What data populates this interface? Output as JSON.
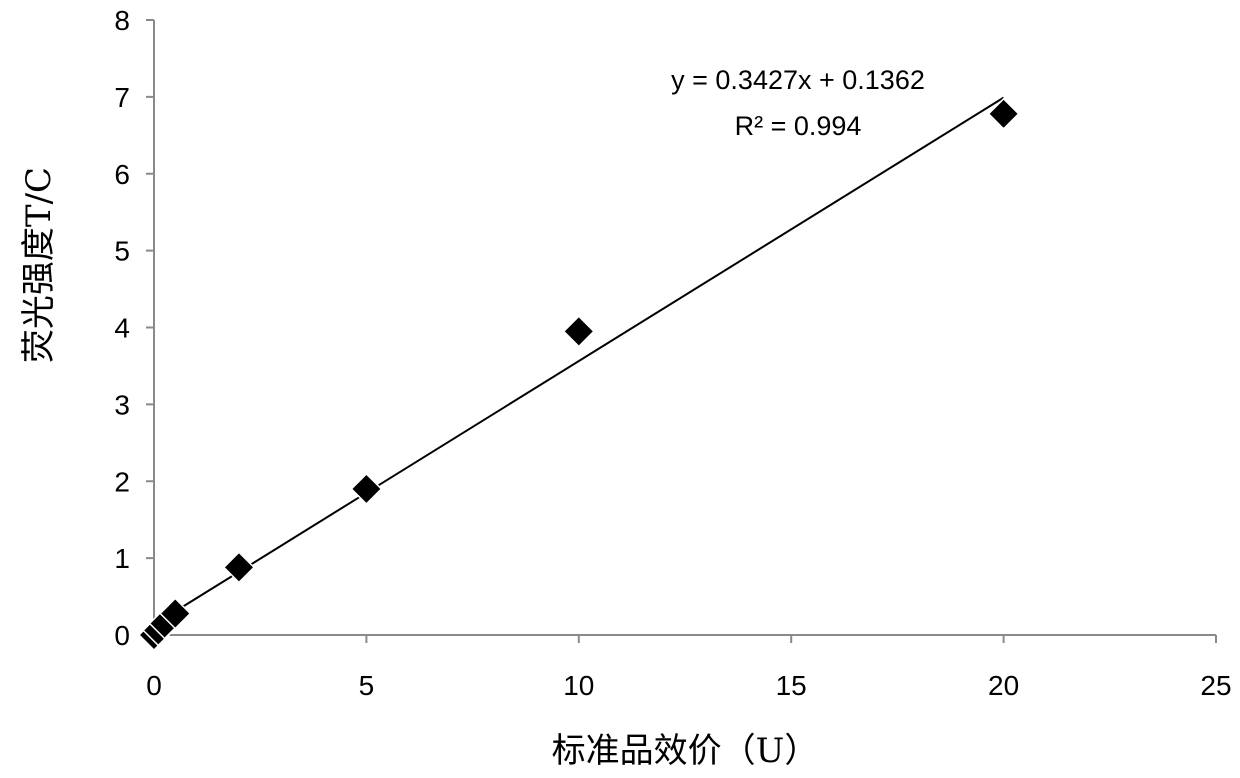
{
  "chart_data": {
    "type": "scatter",
    "xlabel": "标准品效价（U）",
    "ylabel": "荧光强度T/C",
    "xlim": [
      0,
      25
    ],
    "ylim": [
      0,
      8
    ],
    "xticks": [
      0,
      5,
      10,
      15,
      20,
      25
    ],
    "yticks": [
      0,
      1,
      2,
      3,
      4,
      5,
      6,
      7,
      8
    ],
    "grid": false,
    "series": [
      {
        "marker": "diamond",
        "color": "#000000",
        "x": [
          0,
          0.1,
          0.25,
          0.5,
          2,
          5,
          10,
          20
        ],
        "y": [
          0,
          0.06,
          0.15,
          0.28,
          0.88,
          1.9,
          3.95,
          6.78
        ]
      }
    ],
    "trendline": {
      "type": "linear",
      "slope": 0.3427,
      "intercept": 0.1362,
      "x_range": [
        0,
        20
      ]
    },
    "annotations": {
      "equation": "y = 0.3427x + 0.1362",
      "r_squared": "R² = 0.994"
    }
  }
}
